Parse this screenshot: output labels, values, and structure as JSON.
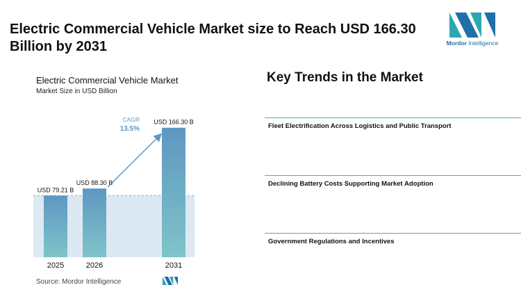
{
  "header": {
    "title": "Electric Commercial Vehicle Market size to Reach USD 166.30 Billion by 2031",
    "logo_brand": "Mordor",
    "logo_suffix": " Intelligence"
  },
  "chart_data": {
    "type": "bar",
    "title": "Electric Commercial Vehicle Market",
    "subtitle": "Market Size in USD Billion",
    "categories": [
      "2025",
      "2026",
      "2031"
    ],
    "values": [
      79.21,
      88.3,
      166.3
    ],
    "value_labels": [
      "USD 79.21 B",
      "USD 88.30 B",
      "USD 166.30 B"
    ],
    "cagr_label": "CAGR",
    "cagr_value": "13.5%",
    "ylim": [
      0,
      175
    ],
    "grid": false,
    "colors": {
      "bar_top": "#5e97c2",
      "bar_bottom": "#7fc4c9",
      "band": "#dce9f3",
      "arrow": "#5e97c2"
    }
  },
  "source": "Source: Mordor Intelligence",
  "trends": {
    "title": "Key Trends in the Market",
    "items": [
      "Fleet Electrification Across Logistics and Public Transport",
      "Declining Battery Costs Supporting Market Adoption",
      "Government Regulations and Incentives"
    ]
  }
}
